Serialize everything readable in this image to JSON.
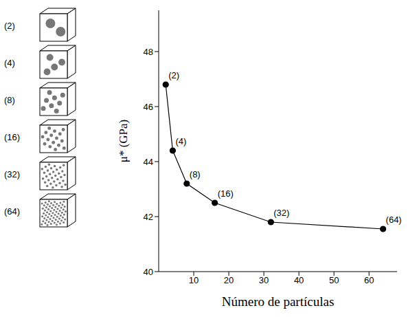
{
  "chart_data": {
    "type": "line",
    "x_label": "Número de partículas",
    "y_label": "μ* (GPa)",
    "x": [
      2,
      4,
      8,
      16,
      32,
      64
    ],
    "values": [
      46.8,
      44.4,
      43.2,
      42.5,
      41.8,
      41.55
    ],
    "point_labels": [
      "(2)",
      "(4)",
      "(8)",
      "(16)",
      "(32)",
      "(64)"
    ],
    "color": "#000000",
    "marker": "circle",
    "line_style": "solid",
    "xlim": [
      0,
      68
    ],
    "xticks": [
      10,
      20,
      30,
      40,
      50,
      60
    ],
    "ylim": [
      40,
      49.5
    ],
    "yticks": [
      40,
      42,
      44,
      46,
      48
    ],
    "grid": false
  },
  "diagram": {
    "panels": [
      {
        "label": "(2)",
        "particles": 2
      },
      {
        "label": "(4)",
        "particles": 4
      },
      {
        "label": "(8)",
        "particles": 8
      },
      {
        "label": "(16)",
        "particles": 16
      },
      {
        "label": "(32)",
        "particles": 32
      },
      {
        "label": "(64)",
        "particles": 64
      }
    ]
  }
}
